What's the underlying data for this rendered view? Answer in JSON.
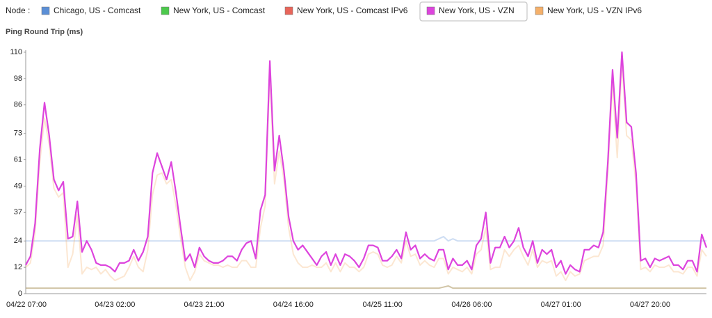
{
  "chart_data": {
    "type": "line",
    "legend_title": "Node :",
    "title": "Ping Round Trip (ms)",
    "selected_series": 3,
    "ylim": [
      0,
      110
    ],
    "yticks": [
      0,
      12,
      24,
      37,
      49,
      61,
      73,
      86,
      98,
      110
    ],
    "x": [
      "04/22 07:00",
      "04/22 08:00",
      "04/22 09:00",
      "04/22 10:00",
      "04/22 11:00",
      "04/22 12:00",
      "04/22 13:00",
      "04/22 14:00",
      "04/22 15:00",
      "04/22 16:00",
      "04/22 17:00",
      "04/22 18:00",
      "04/22 19:00",
      "04/22 20:00",
      "04/22 21:00",
      "04/22 22:00",
      "04/22 23:00",
      "04/23 00:00",
      "04/23 01:00",
      "04/23 02:00",
      "04/23 03:00",
      "04/23 04:00",
      "04/23 05:00",
      "04/23 06:00",
      "04/23 07:00",
      "04/23 08:00",
      "04/23 09:00",
      "04/23 10:00",
      "04/23 11:00",
      "04/23 12:00",
      "04/23 13:00",
      "04/23 14:00",
      "04/23 15:00",
      "04/23 16:00",
      "04/23 17:00",
      "04/23 18:00",
      "04/23 19:00",
      "04/23 20:00",
      "04/23 21:00",
      "04/23 22:00",
      "04/23 23:00",
      "04/24 00:00",
      "04/24 01:00",
      "04/24 02:00",
      "04/24 03:00",
      "04/24 04:00",
      "04/24 05:00",
      "04/24 06:00",
      "04/24 07:00",
      "04/24 08:00",
      "04/24 09:00",
      "04/24 10:00",
      "04/24 11:00",
      "04/24 12:00",
      "04/24 13:00",
      "04/24 14:00",
      "04/24 15:00",
      "04/24 16:00",
      "04/24 17:00",
      "04/24 18:00",
      "04/24 19:00",
      "04/24 20:00",
      "04/24 21:00",
      "04/24 22:00",
      "04/24 23:00",
      "04/25 00:00",
      "04/25 01:00",
      "04/25 02:00",
      "04/25 03:00",
      "04/25 04:00",
      "04/25 05:00",
      "04/25 06:00",
      "04/25 07:00",
      "04/25 08:00",
      "04/25 09:00",
      "04/25 10:00",
      "04/25 11:00",
      "04/25 12:00",
      "04/25 13:00",
      "04/25 14:00",
      "04/25 15:00",
      "04/25 16:00",
      "04/25 17:00",
      "04/25 18:00",
      "04/25 19:00",
      "04/25 20:00",
      "04/25 21:00",
      "04/25 22:00",
      "04/25 23:00",
      "04/26 00:00",
      "04/26 01:00",
      "04/26 02:00",
      "04/26 03:00",
      "04/26 04:00",
      "04/26 05:00",
      "04/26 06:00",
      "04/26 07:00",
      "04/26 08:00",
      "04/26 09:00",
      "04/26 10:00",
      "04/26 11:00",
      "04/26 12:00",
      "04/26 13:00",
      "04/26 14:00",
      "04/26 15:00",
      "04/26 16:00",
      "04/26 17:00",
      "04/26 18:00",
      "04/26 19:00",
      "04/26 20:00",
      "04/26 21:00",
      "04/26 22:00",
      "04/26 23:00",
      "04/27 00:00",
      "04/27 01:00",
      "04/27 02:00",
      "04/27 03:00",
      "04/27 04:00",
      "04/27 05:00",
      "04/27 06:00",
      "04/27 07:00",
      "04/27 08:00",
      "04/27 09:00",
      "04/27 10:00",
      "04/27 11:00",
      "04/27 12:00",
      "04/27 13:00",
      "04/27 14:00",
      "04/27 15:00",
      "04/27 16:00",
      "04/27 17:00",
      "04/27 18:00",
      "04/27 19:00",
      "04/27 20:00",
      "04/27 21:00",
      "04/27 22:00",
      "04/27 23:00",
      "04/28 00:00",
      "04/28 01:00",
      "04/28 02:00",
      "04/28 03:00",
      "04/28 04:00",
      "04/28 05:00",
      "04/28 06:00",
      "04/28 07:00",
      "04/28 08:00"
    ],
    "series": [
      {
        "name": "Chicago, US - Comcast",
        "color": "#5b8fd6",
        "values": [
          24,
          24,
          24,
          24,
          24,
          24,
          24,
          24,
          24,
          24,
          24,
          24,
          24,
          24,
          24,
          24,
          24,
          24,
          24,
          24,
          24,
          24,
          24,
          24,
          24,
          24,
          24,
          24,
          24,
          24,
          24,
          24,
          24,
          24,
          24,
          24,
          24,
          24,
          24,
          24,
          24,
          24,
          24,
          24,
          24,
          24,
          24,
          24,
          24,
          24,
          24,
          24,
          24,
          24,
          24,
          24,
          24,
          24,
          24,
          24,
          24,
          24,
          24,
          24,
          24,
          24,
          24,
          24,
          24,
          24,
          24,
          24,
          24,
          24,
          24,
          24,
          24,
          24,
          24,
          24,
          24,
          24,
          24,
          24,
          24,
          24,
          24,
          24,
          25,
          26,
          24,
          25,
          24,
          24,
          24,
          24,
          24,
          24,
          24,
          24,
          24,
          24,
          24,
          24,
          24,
          24,
          24,
          24,
          24,
          24,
          24,
          24,
          24,
          24,
          24,
          24,
          24,
          24,
          24,
          24,
          24,
          24,
          24,
          24,
          24,
          24,
          24,
          24,
          24,
          24,
          24,
          24,
          24,
          24,
          24,
          24,
          24,
          24,
          24,
          24,
          24,
          24,
          24,
          24,
          24,
          24
        ]
      },
      {
        "name": "New York, US - Comcast",
        "color": "#4cc94c",
        "values": [
          2.5,
          2.5,
          2.5,
          2.5,
          2.5,
          2.5,
          2.5,
          2.5,
          2.5,
          2.5,
          2.5,
          2.5,
          2.5,
          2.5,
          2.5,
          2.5,
          2.5,
          2.5,
          2.5,
          2.5,
          2.5,
          2.5,
          2.5,
          2.5,
          2.5,
          2.5,
          2.5,
          2.5,
          2.5,
          2.5,
          2.5,
          2.5,
          2.5,
          2.5,
          2.5,
          2.5,
          2.5,
          2.5,
          2.5,
          2.5,
          2.5,
          2.5,
          2.5,
          2.5,
          2.5,
          2.5,
          2.5,
          2.5,
          2.5,
          2.5,
          2.5,
          2.5,
          2.5,
          2.5,
          2.5,
          2.5,
          2.5,
          2.5,
          2.5,
          2.5,
          2.5,
          2.5,
          2.5,
          2.5,
          2.5,
          2.5,
          2.5,
          2.5,
          2.5,
          2.5,
          2.5,
          2.5,
          2.5,
          2.5,
          2.5,
          2.5,
          2.5,
          2.5,
          2.5,
          2.5,
          2.5,
          2.5,
          2.5,
          2.5,
          2.5,
          2.5,
          2.5,
          2.5,
          2.5,
          3,
          3.5,
          2.5,
          2.5,
          2.5,
          2.5,
          2.5,
          2.5,
          2.5,
          2.5,
          2.5,
          2.5,
          2.5,
          2.5,
          2.5,
          2.5,
          2.5,
          2.5,
          2.5,
          2.5,
          2.5,
          2.5,
          2.5,
          2.5,
          2.5,
          2.5,
          2.5,
          2.5,
          2.5,
          2.5,
          2.5,
          2.5,
          2.5,
          2.5,
          2.5,
          2.5,
          2.5,
          2.5,
          2.5,
          2.5,
          2.5,
          2.5,
          2.5,
          2.5,
          2.5,
          2.5,
          2.5,
          2.5,
          2.5,
          2.5,
          2.5,
          2.5,
          2.5,
          2.5,
          2.5,
          2.5,
          2.5
        ]
      },
      {
        "name": "New York, US - Comcast IPv6",
        "color": "#e8655a",
        "values": [
          2.5,
          2.5,
          2.5,
          2.5,
          2.5,
          2.5,
          2.5,
          2.5,
          2.5,
          2.5,
          2.5,
          2.5,
          2.5,
          2.5,
          2.5,
          2.5,
          2.5,
          2.5,
          2.5,
          2.5,
          2.5,
          2.5,
          2.5,
          2.5,
          2.5,
          2.5,
          2.5,
          2.5,
          2.5,
          2.5,
          2.5,
          2.5,
          2.5,
          2.5,
          2.5,
          2.5,
          2.5,
          2.5,
          2.5,
          2.5,
          2.5,
          2.5,
          2.5,
          2.5,
          2.5,
          2.5,
          2.5,
          2.5,
          2.5,
          2.5,
          2.5,
          2.5,
          2.5,
          2.5,
          2.5,
          2.5,
          2.5,
          2.5,
          2.5,
          2.5,
          2.5,
          2.5,
          2.5,
          2.5,
          2.5,
          2.5,
          2.5,
          2.5,
          2.5,
          2.5,
          2.5,
          2.5,
          2.5,
          2.5,
          2.5,
          2.5,
          2.5,
          2.5,
          2.5,
          2.5,
          2.5,
          2.5,
          2.5,
          2.5,
          2.5,
          2.5,
          2.5,
          2.5,
          2.5,
          3,
          3.5,
          2.5,
          2.5,
          2.5,
          2.5,
          2.5,
          2.5,
          2.5,
          2.5,
          2.5,
          2.5,
          2.5,
          2.5,
          2.5,
          2.5,
          2.5,
          2.5,
          2.5,
          2.5,
          2.5,
          2.5,
          2.5,
          2.5,
          2.5,
          2.5,
          2.5,
          2.5,
          2.5,
          2.5,
          2.5,
          2.5,
          2.5,
          2.5,
          2.5,
          2.5,
          2.5,
          2.5,
          2.5,
          2.5,
          2.5,
          2.5,
          2.5,
          2.5,
          2.5,
          2.5,
          2.5,
          2.5,
          2.5,
          2.5,
          2.5,
          2.5,
          2.5,
          2.5,
          2.5,
          2.5,
          2.5
        ]
      },
      {
        "name": "New York, US - VZN",
        "color": "#dd44dd",
        "values": [
          13,
          17,
          32,
          66,
          87,
          72,
          52,
          47,
          51,
          25,
          26,
          42,
          19,
          24,
          20,
          14,
          13,
          13,
          12,
          10,
          14,
          14,
          15,
          20,
          15,
          19,
          26,
          55,
          64,
          58,
          52,
          60,
          46,
          30,
          15,
          18,
          12,
          21,
          17,
          15,
          14,
          14,
          15,
          17,
          17,
          15,
          20,
          23,
          24,
          16,
          38,
          45,
          106,
          56,
          72,
          56,
          35,
          24,
          20,
          22,
          19,
          16,
          13,
          17,
          19,
          13,
          18,
          13,
          18,
          17,
          15,
          12,
          16,
          22,
          22,
          21,
          15,
          15,
          17,
          20,
          16,
          28,
          20,
          22,
          16,
          18,
          16,
          15,
          20,
          20,
          11,
          16,
          13,
          13,
          15,
          11,
          22,
          25,
          37,
          14,
          21,
          21,
          26,
          21,
          24,
          30,
          21,
          17,
          24,
          14,
          20,
          18,
          20,
          12,
          15,
          9,
          13,
          11,
          10,
          20,
          20,
          22,
          21,
          28,
          60,
          102,
          71,
          110,
          78,
          76,
          55,
          15,
          16,
          12,
          16,
          15,
          16,
          17,
          13,
          13,
          11,
          15,
          15,
          10,
          27,
          21
        ]
      },
      {
        "name": "New York, US - VZN IPv6",
        "color": "#f5b06a",
        "values": [
          12,
          14,
          28,
          60,
          80,
          68,
          48,
          44,
          46,
          12,
          18,
          36,
          9,
          12,
          11,
          12,
          9,
          11,
          8,
          6,
          7,
          8,
          12,
          17,
          12,
          10,
          20,
          45,
          54,
          55,
          50,
          52,
          40,
          25,
          12,
          6,
          10,
          18,
          15,
          14,
          13,
          13,
          12,
          13,
          12,
          12,
          15,
          15,
          12,
          12,
          30,
          40,
          100,
          50,
          65,
          52,
          30,
          18,
          14,
          12,
          12,
          13,
          12,
          12,
          14,
          10,
          14,
          10,
          14,
          12,
          12,
          10,
          12,
          18,
          19,
          18,
          13,
          12,
          13,
          17,
          14,
          24,
          17,
          18,
          13,
          15,
          13,
          12,
          16,
          16,
          9,
          12,
          11,
          10,
          12,
          9,
          18,
          20,
          30,
          11,
          12,
          12,
          20,
          17,
          20,
          22,
          17,
          13,
          20,
          12,
          15,
          14,
          15,
          8,
          10,
          6,
          10,
          8,
          9,
          15,
          16,
          17,
          17,
          22,
          55,
          95,
          62,
          105,
          72,
          70,
          50,
          11,
          12,
          10,
          13,
          12,
          12,
          13,
          10,
          10,
          9,
          12,
          12,
          8,
          20,
          17
        ]
      }
    ]
  }
}
